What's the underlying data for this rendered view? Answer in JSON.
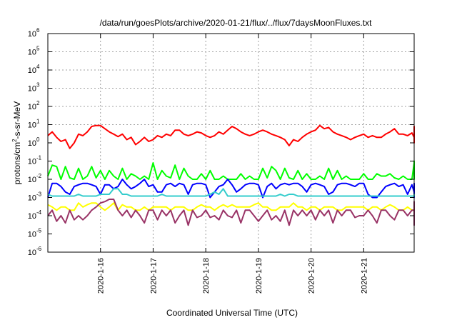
{
  "chart_data": {
    "type": "line",
    "title": "/data/run/goesPlots/archive/2020-01-21/flux/../flux/7daysMoonFluxes.txt",
    "xlabel": "Coordinated Universal Time (UTC)",
    "ylabel": {
      "base": "protons/cm",
      "sup": "2",
      "rest": "-s-sr-MeV"
    },
    "yscale": "log",
    "ylim": [
      1e-06,
      1000000.0
    ],
    "y_ticks": [
      {
        "exp": -6,
        "label": "10",
        "sup": "-6"
      },
      {
        "exp": -5,
        "label": "10",
        "sup": "-5"
      },
      {
        "exp": -4,
        "label": "10",
        "sup": "-4"
      },
      {
        "exp": -3,
        "label": "10",
        "sup": "-3"
      },
      {
        "exp": -2,
        "label": "10",
        "sup": "-2"
      },
      {
        "exp": -1,
        "label": "10",
        "sup": "-1"
      },
      {
        "exp": 0,
        "label": "10",
        "sup": "0"
      },
      {
        "exp": 1,
        "label": "10",
        "sup": "1"
      },
      {
        "exp": 2,
        "label": "10",
        "sup": "2"
      },
      {
        "exp": 3,
        "label": "10",
        "sup": "3"
      },
      {
        "exp": 4,
        "label": "10",
        "sup": "4"
      },
      {
        "exp": 5,
        "label": "10",
        "sup": "5"
      },
      {
        "exp": 6,
        "label": "10",
        "sup": "6"
      }
    ],
    "xlim": [
      "2020-01-15 00:00",
      "2020-01-21 23:00"
    ],
    "x_ticks": [
      "2020-1-16",
      "2020-1-17",
      "2020-1-18",
      "2020-1-19",
      "2020-1-20",
      "2020-1-21"
    ],
    "x_tick_dates": [
      "2020-01-16",
      "2020-01-17",
      "2020-01-18",
      "2020-01-19",
      "2020-01-20",
      "2020-01-21"
    ],
    "grid": true,
    "series": [
      {
        "color": "#ff0000",
        "x_start": "2020-01-15 00:00",
        "step_hours": 2,
        "values": [
          2.5,
          4,
          2,
          1.2,
          1.5,
          0.5,
          1,
          3,
          2.5,
          4,
          8,
          9,
          9,
          6,
          4,
          3,
          2.2,
          3,
          1.5,
          2,
          0.8,
          1.2,
          2,
          1.2,
          1.5,
          2.5,
          2,
          3,
          2.5,
          5,
          5,
          3,
          2.5,
          3,
          4,
          3.5,
          2.5,
          2,
          2.5,
          4,
          3,
          5,
          8,
          6,
          4,
          3,
          2.5,
          3,
          4,
          5,
          4,
          3,
          2.5,
          2,
          1.5,
          0.7,
          1.5,
          1.2,
          2,
          3,
          4,
          5,
          9,
          6,
          7,
          4,
          3,
          2.5,
          2,
          1.5,
          2,
          2.5,
          3,
          2,
          2.5,
          2,
          2,
          3,
          4,
          6,
          3,
          3,
          2.5,
          3.5,
          2,
          2.5,
          5,
          8,
          4,
          5,
          3,
          3,
          2.2,
          2,
          2,
          2.5,
          2,
          1.5,
          2,
          2,
          2.5,
          3,
          3,
          3,
          2.5,
          3,
          3.5,
          4,
          5,
          5,
          3,
          2,
          1.5,
          1,
          1,
          1.5,
          2.5,
          3,
          3.5,
          4,
          6,
          7,
          6,
          5,
          4
        ]
      },
      {
        "color": "#00ff00",
        "x_start": "2020-01-15 00:00",
        "step_hours": 2,
        "values": [
          0.015,
          0.06,
          0.05,
          0.01,
          0.05,
          0.012,
          0.01,
          0.04,
          0.01,
          0.015,
          0.05,
          0.012,
          0.03,
          0.01,
          0.03,
          0.015,
          0.01,
          0.04,
          0.01,
          0.02,
          0.015,
          0.01,
          0.015,
          0.01,
          0.08,
          0.01,
          0.03,
          0.015,
          0.012,
          0.06,
          0.01,
          0.04,
          0.015,
          0.01,
          0.01,
          0.02,
          0.01,
          0.03,
          0.01,
          0.01,
          0.015,
          0.01,
          0.01,
          0.01,
          0.02,
          0.01,
          0.015,
          0.01,
          0.01,
          0.04,
          0.012,
          0.05,
          0.03,
          0.01,
          0.04,
          0.012,
          0.01,
          0.03,
          0.01,
          0.02,
          0.01,
          0.01,
          0.015,
          0.01,
          0.04,
          0.01,
          0.03,
          0.01,
          0.015,
          0.01,
          0.01,
          0.01,
          0.02,
          0.01,
          0.01,
          0.02,
          0.015,
          0.015,
          0.02,
          0.012,
          0.01,
          0.015,
          0.01,
          0.01,
          0.08,
          0.05,
          0.02,
          0.01,
          0.015,
          0.02,
          0.01,
          0.01,
          0.012,
          0.015,
          0.05,
          0.012,
          0.01,
          0.015,
          0.01,
          0.02,
          0.015,
          0.01,
          0.015,
          0.02,
          0.01,
          0.015,
          0.01,
          0.015,
          0.1,
          0.02,
          0.01,
          0.015,
          0.05,
          0.01,
          0.015,
          0.015,
          0.03,
          0.01,
          0.012,
          0.01,
          0.01,
          0.01,
          0.01,
          0.01,
          0.01
        ]
      },
      {
        "color": "#0000ff",
        "x_start": "2020-01-15 00:00",
        "step_hours": 2,
        "values": [
          0.001,
          0.006,
          0.006,
          0.004,
          0.002,
          0.0015,
          0.004,
          0.005,
          0.006,
          0.006,
          0.005,
          0.004,
          0.0015,
          0.005,
          0.005,
          0.003,
          0.004,
          0.01,
          0.005,
          0.003,
          0.004,
          0.006,
          0.01,
          0.004,
          0.005,
          0.002,
          0.002,
          0.005,
          0.006,
          0.004,
          0.006,
          0.005,
          0.0015,
          0.005,
          0.006,
          0.006,
          0.005,
          0.001,
          0.002,
          0.004,
          0.005,
          0.01,
          0.005,
          0.002,
          0.003,
          0.005,
          0.006,
          0.006,
          0.005,
          0.001,
          0.004,
          0.006,
          0.003,
          0.005,
          0.006,
          0.005,
          0.006,
          0.006,
          0.004,
          0.002,
          0.005,
          0.006,
          0.005,
          0.004,
          0.0015,
          0.002,
          0.005,
          0.006,
          0.006,
          0.005,
          0.004,
          0.006,
          0.006,
          0.0015,
          0.001,
          0.001,
          0.002,
          0.004,
          0.005,
          0.006,
          0.004,
          0.005,
          0.0015,
          0.005,
          0.002,
          0.001,
          0.002,
          0.004,
          0.005,
          0.006,
          0.006,
          0.006,
          0.005,
          0.004,
          0.002,
          0.003,
          0.005,
          0.005,
          0.006,
          0.0015,
          0.006,
          0.006,
          0.005,
          0.005,
          0.006,
          0.004,
          0.002,
          0.005,
          0.005,
          0.006,
          0.006,
          0.006,
          0.005,
          0.005,
          0.006,
          0.006,
          0.005,
          0.002,
          0.002,
          0.0015,
          0.003,
          0.005,
          0.006,
          0.006,
          0.005,
          0.006
        ]
      },
      {
        "color": "#33cccc",
        "x_start": "2020-01-15 00:00",
        "step_hours": 2,
        "values": [
          0.0015,
          0.0012,
          0.0012,
          0.0012,
          0.0012,
          0.0012,
          0.0012,
          0.0015,
          0.0012,
          0.0012,
          0.0012,
          0.0012,
          0.0015,
          0.0015,
          0.0015,
          0.003,
          0.003,
          0.0015,
          0.0015,
          0.0012,
          0.0012,
          0.0012,
          0.0012,
          0.0012,
          0.0012,
          0.0012,
          0.0015,
          0.0012,
          0.0012,
          0.0012,
          0.0012,
          0.0012,
          0.0012,
          0.0012,
          0.0012,
          0.0012,
          0.0012,
          0.0015,
          0.002,
          0.0015,
          0.003,
          0.0012,
          0.0012,
          0.0012,
          0.0012,
          0.0012,
          0.0012,
          0.0012,
          0.0012,
          0.0012,
          0.0012,
          0.0012,
          0.0012,
          0.0015,
          0.0012,
          0.0015,
          0.0015,
          0.0012,
          0.0012,
          0.0012,
          0.0012,
          0.0012,
          0.0012,
          0.0012,
          0.0012,
          0.0012,
          0.0012,
          0.0012,
          0.0012,
          0.0012,
          0.0012,
          0.0012,
          0.0012,
          0.0012,
          0.0012,
          0.0012,
          0.0012,
          0.0012,
          0.0012,
          0.0012,
          0.0012,
          0.0012,
          0.0012,
          0.0012,
          0.0012,
          0.0012,
          0.0012,
          0.0012,
          0.0012,
          0.0015,
          0.0015,
          0.0012,
          0.0012,
          0.0012,
          0.0012,
          0.0012,
          0.0012,
          0.0012,
          0.0012,
          0.0012,
          0.0012,
          0.0012,
          0.0012,
          0.0012,
          0.0012,
          0.0012,
          0.0012,
          0.0012,
          0.0012,
          0.0012,
          0.0012,
          0.0012,
          0.0012,
          0.0012,
          0.0012,
          0.0012,
          0.0012,
          0.0012,
          0.0012,
          0.0012,
          0.0012,
          0.0012,
          0.0012,
          0.0012,
          0.0012,
          0.0012
        ]
      },
      {
        "color": "#ffff00",
        "x_start": "2020-01-15 00:00",
        "step_hours": 2,
        "values": [
          0.0004,
          0.0003,
          0.0002,
          0.0003,
          0.0003,
          0.0002,
          0.0002,
          0.0005,
          0.0003,
          0.0004,
          0.0005,
          0.0005,
          0.0003,
          0.0002,
          0.0003,
          0.0005,
          0.0002,
          0.0004,
          0.0003,
          0.0003,
          0.0002,
          0.0002,
          0.0003,
          0.0002,
          0.0003,
          0.0003,
          0.0003,
          0.0003,
          0.0002,
          0.0003,
          0.0003,
          0.0003,
          0.0002,
          0.0002,
          0.0003,
          0.0004,
          0.0003,
          0.0003,
          0.0002,
          0.0003,
          0.0004,
          0.0003,
          0.0004,
          0.0003,
          0.0003,
          0.0003,
          0.0003,
          0.0004,
          0.0005,
          0.0003,
          0.0003,
          0.0002,
          0.0002,
          0.0003,
          0.0003,
          0.0003,
          0.0005,
          0.0003,
          0.0003,
          0.0002,
          0.0003,
          0.0003,
          0.0002,
          0.0003,
          0.0003,
          0.0003,
          0.0002,
          0.0002,
          0.0003,
          0.0003,
          0.0003,
          0.0003,
          0.0003,
          0.0002,
          0.0003,
          0.0003,
          0.0002,
          0.0003,
          0.0004,
          0.0003,
          0.0002,
          0.0002,
          0.0003,
          0.0002,
          0.0002,
          0.0002,
          0.0003,
          0.0003,
          0.0003,
          0.0003,
          0.0003,
          0.0003,
          0.0003,
          0.0002,
          0.0002,
          0.0002,
          0.0002,
          0.0002,
          0.0002,
          0.0002,
          0.0002,
          0.0002,
          0.0002,
          0.0003,
          0.0002,
          0.0002,
          0.0002,
          0.0003,
          0.0002,
          0.0002,
          0.0003,
          0.0003,
          0.0002,
          0.0002,
          0.0003,
          0.0002,
          0.0002,
          0.0002,
          0.0003,
          0.0002,
          0.0002,
          0.0002,
          0.0003,
          0.0002,
          0.0002,
          0.0003
        ]
      },
      {
        "color": "#993366",
        "x_start": "2020-01-15 00:00",
        "step_hours": 2,
        "values": [
          0.0001,
          0.0002,
          5e-05,
          0.0001,
          4e-05,
          0.0002,
          6e-05,
          0.0001,
          6e-05,
          0.0001,
          0.0002,
          0.0003,
          0.0005,
          0.0006,
          0.0008,
          0.0008,
          0.0002,
          0.0001,
          0.0002,
          8e-05,
          0.0002,
          0.0001,
          4e-05,
          0.0002,
          0.0002,
          6e-05,
          0.0002,
          0.0001,
          0.0002,
          4e-05,
          0.0001,
          0.0002,
          3e-05,
          0.0002,
          8e-05,
          0.0001,
          0.0002,
          8e-05,
          0.0001,
          6e-05,
          0.0002,
          0.0001,
          8e-05,
          0.0002,
          4e-05,
          0.0002,
          0.0002,
          0.0001,
          5e-05,
          0.0001,
          0.0002,
          6e-05,
          0.0001,
          5e-05,
          0.0002,
          3e-05,
          0.0002,
          0.0001,
          0.0002,
          0.0001,
          0.0002,
          6e-05,
          0.0002,
          0.0001,
          0.0002,
          4e-05,
          0.0002,
          0.0001,
          0.0002,
          0.0002,
          8e-05,
          0.0001,
          0.0001,
          0.0002,
          0.0001,
          4e-05,
          0.0002,
          0.0002,
          0.0001,
          6e-05,
          0.0002,
          0.0002,
          0.0001,
          0.0002,
          0.0002,
          0.0002,
          0.0001,
          3e-05,
          0.0001,
          0.0002,
          0.0001,
          0.0002,
          0.0002,
          0.0001,
          0.0002,
          0.0002,
          0.0002,
          0.0002,
          3e-05,
          0.0002,
          0.0001,
          6e-05,
          0.0002,
          0.0002,
          0.0001,
          5e-05,
          0.0002,
          0.0001,
          0.0002,
          0.0002,
          0.0001,
          0.0005,
          0.0006,
          0.0003,
          0.0002,
          6e-05,
          0.0002,
          0.0002,
          0.0001,
          0.0002,
          0.0002,
          7e-05,
          0.0001,
          5e-05,
          6e-05
        ]
      }
    ]
  }
}
